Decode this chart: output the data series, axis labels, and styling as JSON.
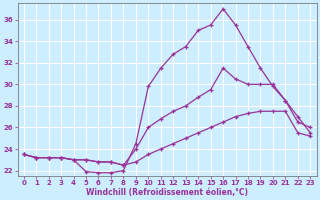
{
  "xlabel": "Windchill (Refroidissement éolien,°C)",
  "bg_color": "#cceeff",
  "grid_color": "#aaddcc",
  "line_color": "#993399",
  "xlim": [
    -0.5,
    23.5
  ],
  "ylim": [
    21.5,
    37.5
  ],
  "xticks": [
    0,
    1,
    2,
    3,
    4,
    5,
    6,
    7,
    8,
    9,
    10,
    11,
    12,
    13,
    14,
    15,
    16,
    17,
    18,
    19,
    20,
    21,
    22,
    23
  ],
  "yticks": [
    22,
    24,
    26,
    28,
    30,
    32,
    34,
    36
  ],
  "line1_x": [
    0,
    1,
    2,
    3,
    4,
    5,
    6,
    7,
    8,
    9,
    10,
    11,
    12,
    13,
    14,
    15,
    16,
    17,
    18,
    19,
    20,
    21,
    22,
    23
  ],
  "line1_y": [
    23.5,
    23.2,
    23.2,
    23.2,
    23.0,
    21.9,
    21.8,
    21.8,
    22.0,
    24.5,
    29.8,
    31.5,
    32.8,
    33.5,
    35.0,
    35.5,
    37.0,
    35.5,
    33.5,
    31.5,
    29.8,
    28.5,
    26.5,
    26.0
  ],
  "line2_x": [
    0,
    1,
    2,
    3,
    4,
    5,
    6,
    7,
    8,
    9,
    10,
    11,
    12,
    13,
    14,
    15,
    16,
    17,
    18,
    19,
    20,
    21,
    22,
    23
  ],
  "line2_y": [
    23.5,
    23.2,
    23.2,
    23.2,
    23.0,
    23.0,
    22.8,
    22.8,
    22.5,
    24.0,
    26.0,
    26.8,
    27.5,
    28.0,
    28.8,
    29.5,
    31.5,
    30.5,
    30.0,
    30.0,
    30.0,
    28.5,
    27.0,
    25.5
  ],
  "line3_x": [
    0,
    1,
    2,
    3,
    4,
    5,
    6,
    7,
    8,
    9,
    10,
    11,
    12,
    13,
    14,
    15,
    16,
    17,
    18,
    19,
    20,
    21,
    22,
    23
  ],
  "line3_y": [
    23.5,
    23.2,
    23.2,
    23.2,
    23.0,
    23.0,
    22.8,
    22.8,
    22.5,
    22.8,
    23.5,
    24.0,
    24.5,
    25.0,
    25.5,
    26.0,
    26.5,
    27.0,
    27.3,
    27.5,
    27.5,
    27.5,
    25.5,
    25.2
  ]
}
